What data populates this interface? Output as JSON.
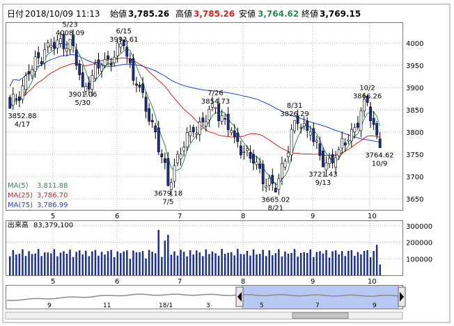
{
  "header": {
    "date_label": "日付",
    "date_value": "2018/10/09 11:13",
    "open_label": "始値",
    "open_value": "3,785.26",
    "high_label": "高値",
    "high_value": "3,785.26",
    "low_label": "安値",
    "low_value": "3,764.62",
    "close_label": "終値",
    "close_value": "3,769.15"
  },
  "legend": [
    {
      "label": "MA(5)",
      "value": "3,811.88",
      "color": "#2e8b57"
    },
    {
      "label": "MA(25)",
      "value": "3,786.70",
      "color": "#e02020"
    },
    {
      "label": "MA(75)",
      "value": "3,786.99",
      "color": "#1f3fe0"
    }
  ],
  "volume_panel": {
    "label": "出来高",
    "value": "83,379,100"
  },
  "colors": {
    "up": "#ffffff",
    "down": "#1a2f9a",
    "frame": "#7a7a7a",
    "grid": "#b8b8b8",
    "ma5": "#2e8b57",
    "ma25": "#e02020",
    "ma75": "#1f3fe0",
    "high_value": "#e02020",
    "low_value": "#2e8b57",
    "volume_bar": "#1a2f9a",
    "overview_line": "#8a8a8a",
    "overview_selection": "#b8c8f0"
  },
  "overview": {
    "labels": [
      "9",
      "11",
      "18/1",
      "3",
      "5",
      "7",
      "9"
    ]
  },
  "chart_data": [
    {
      "type": "candlestick",
      "title": "",
      "x_ticks": [
        "5",
        "6",
        "7",
        "8",
        "9",
        "10"
      ],
      "y_ticks": [
        3650,
        3700,
        3750,
        3800,
        3850,
        3900,
        3950,
        4000
      ],
      "ylim": [
        3625,
        4045
      ],
      "grid": true,
      "start_date": "2018/04/17",
      "series": [
        {
          "name": "MA(5)",
          "color": "#2e8b57"
        },
        {
          "name": "MA(25)",
          "color": "#e02020"
        },
        {
          "name": "MA(75)",
          "color": "#1f3fe0"
        }
      ],
      "annotations": [
        {
          "value": "3852.88",
          "date": "4/17",
          "type": "low"
        },
        {
          "value": "4008.09",
          "date": "5/23",
          "type": "high"
        },
        {
          "value": "3901.06",
          "date": "5/30",
          "type": "low"
        },
        {
          "value": "3993.61",
          "date": "6/15",
          "type": "high"
        },
        {
          "value": "3679.18",
          "date": "7/5",
          "type": "low"
        },
        {
          "value": "3854.73",
          "date": "7/26",
          "type": "high"
        },
        {
          "value": "3665.02",
          "date": "8/21",
          "type": "low"
        },
        {
          "value": "3826.29",
          "date": "8/31",
          "type": "high"
        },
        {
          "value": "3721.43",
          "date": "9/13",
          "type": "low"
        },
        {
          "value": "3866.26",
          "date": "10/2",
          "type": "high"
        },
        {
          "value": "3764.62",
          "date": "10/9",
          "type": "low"
        }
      ]
    },
    {
      "type": "bar",
      "title": "出来高",
      "x_ticks": [
        "5",
        "6",
        "7",
        "8",
        "9",
        "10"
      ],
      "y_ticks": [
        "100000",
        "200000",
        "300000"
      ],
      "ylim": [
        0,
        320000
      ],
      "grid": true
    }
  ]
}
